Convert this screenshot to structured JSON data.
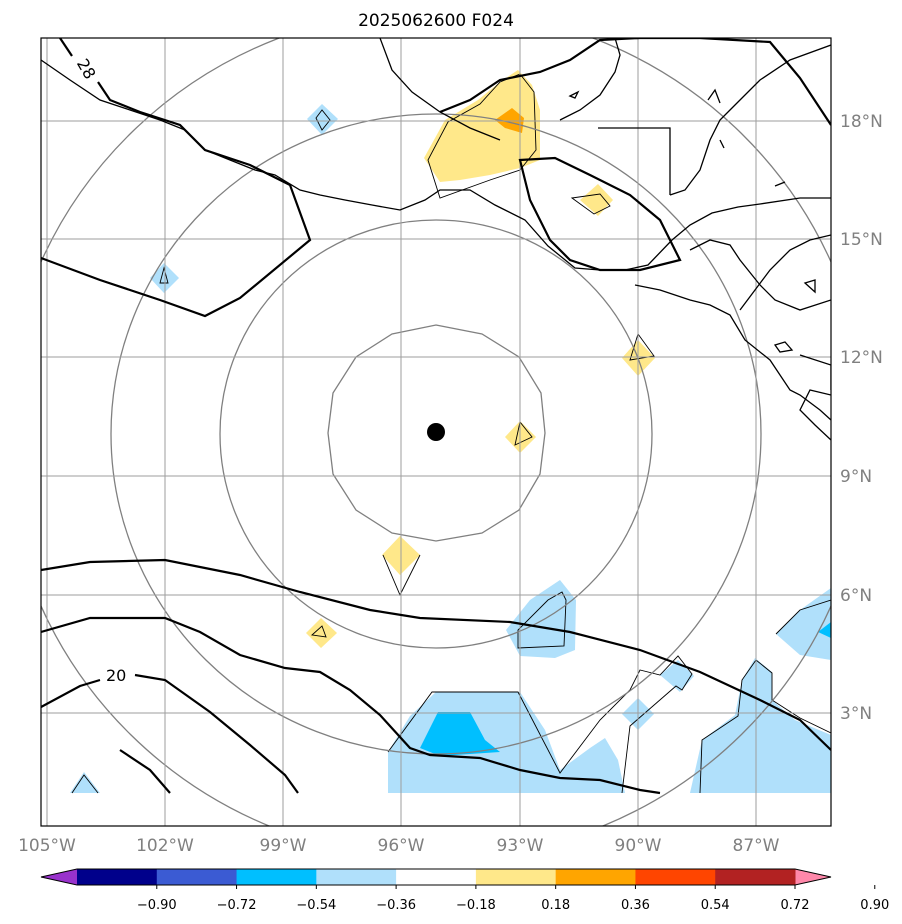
{
  "title": "2025062600 F024",
  "lat_labels": [
    "18°N",
    "15°N",
    "12°N",
    "9°N",
    "6°N",
    "3°N"
  ],
  "lon_labels": [
    "105°W",
    "102°W",
    "99°W",
    "96°W",
    "93°W",
    "90°W",
    "87°W"
  ],
  "contour_labels": [
    "28",
    "20"
  ],
  "colorbar": {
    "ticks": [
      "−0.90",
      "−0.72",
      "−0.54",
      "−0.36",
      "−0.18",
      "0.18",
      "0.36",
      "0.54",
      "0.72",
      "0.90"
    ],
    "colors": [
      "#9932cc",
      "#00008b",
      "#3b5bd3",
      "#00bfff",
      "#b0e0fb",
      "#ffffff",
      "#ffe88a",
      "#ffa500",
      "#ff4500",
      "#b22222",
      "#ff88aa"
    ]
  },
  "center_marker": {
    "lat": 10.1,
    "lon": -95.1
  }
}
